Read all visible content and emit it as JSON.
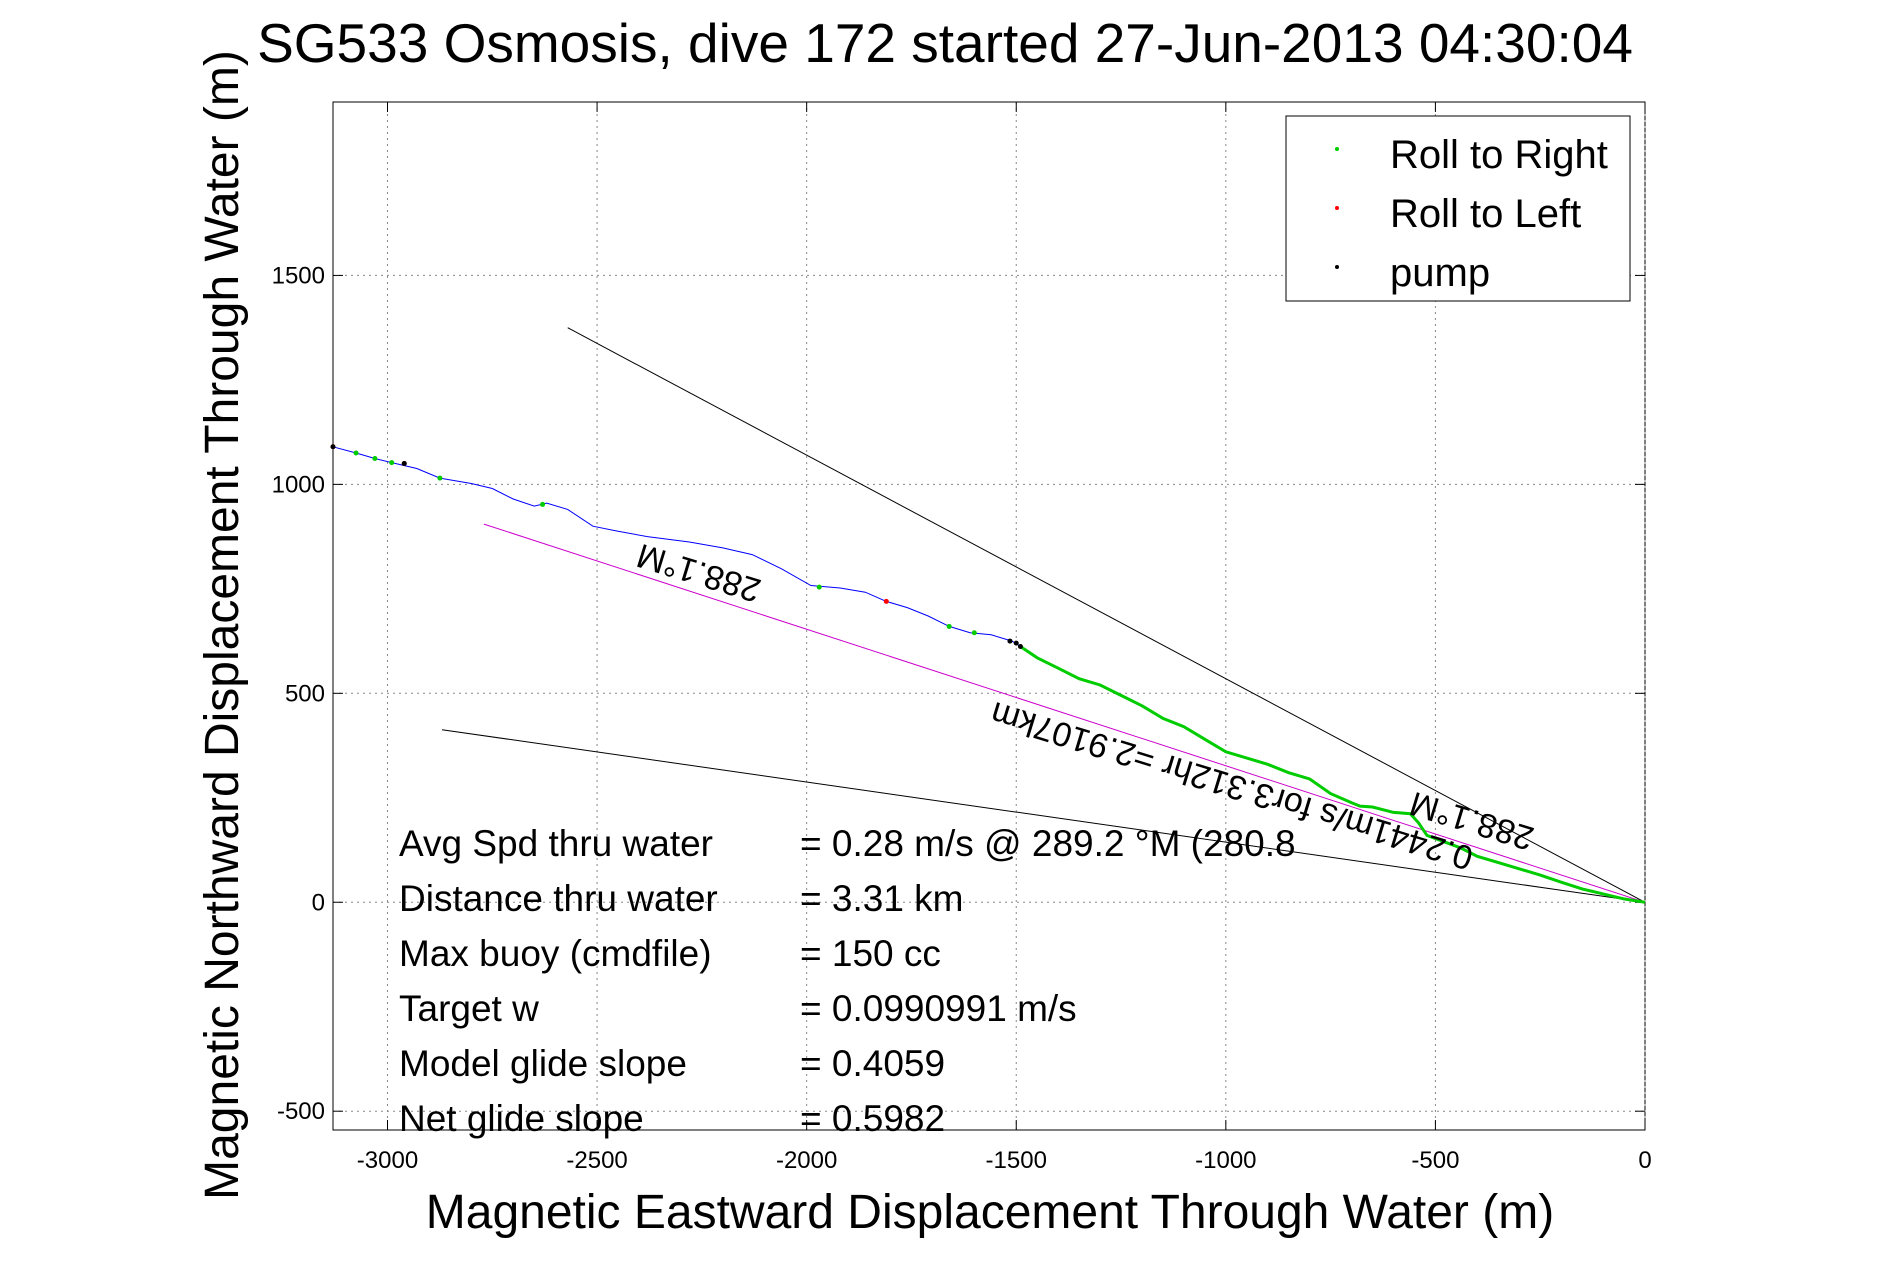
{
  "chart_data": {
    "type": "scatter",
    "title": "SG533 Osmosis, dive 172 started 27-Jun-2013 04:30:04",
    "xlabel": "Magnetic Eastward Displacement Through Water (m)",
    "ylabel": "Magnetic Northward Displacement Through Water (m)",
    "xlim": [
      -3130,
      0
    ],
    "ylim": [
      -545,
      1915
    ],
    "xticks": [
      -3000,
      -2500,
      -2000,
      -1500,
      -1000,
      -500,
      0
    ],
    "yticks": [
      -500,
      0,
      500,
      1000,
      1500
    ],
    "xtick_labels": [
      "-3000",
      "-2500",
      "-2000",
      "-1500",
      "-1000",
      "-500",
      "0"
    ],
    "ytick_labels": [
      "-500",
      "0",
      "500",
      "1000",
      "1500"
    ],
    "grid": true,
    "legend_position": "top-right",
    "legend": [
      {
        "label": "Roll to Right",
        "color": "#00cc00"
      },
      {
        "label": "Roll to Left",
        "color": "#ff0000"
      },
      {
        "label": "pump",
        "color": "#000000"
      }
    ],
    "track": {
      "color": "#0000ff",
      "x": [
        -3130,
        -3075,
        -3030,
        -2990,
        -2930,
        -2875,
        -2800,
        -2750,
        -2700,
        -2650,
        -2620,
        -2570,
        -2510,
        -2450,
        -2380,
        -2280,
        -2200,
        -2130,
        -2060,
        -1990,
        -1920,
        -1860,
        -1810,
        -1760,
        -1710,
        -1660,
        -1610,
        -1560,
        -1510,
        -1490
      ],
      "y": [
        1090,
        1075,
        1062,
        1052,
        1038,
        1015,
        1002,
        990,
        965,
        948,
        955,
        940,
        900,
        888,
        875,
        862,
        848,
        832,
        798,
        758,
        752,
        742,
        720,
        705,
        685,
        660,
        645,
        640,
        625,
        612
      ]
    },
    "roll_right_track": {
      "color": "#00cc00",
      "x": [
        -1490,
        -1450,
        -1400,
        -1350,
        -1300,
        -1250,
        -1200,
        -1150,
        -1100,
        -1050,
        -1000,
        -950,
        -900,
        -850,
        -800,
        -750,
        -700,
        -680,
        -650,
        -600,
        -560,
        -540,
        -520,
        -480,
        -440,
        -400,
        -350,
        -300,
        -250,
        -200,
        -150,
        -100,
        -50,
        0
      ],
      "y": [
        612,
        585,
        560,
        535,
        520,
        495,
        470,
        440,
        420,
        390,
        360,
        345,
        330,
        310,
        295,
        260,
        238,
        230,
        228,
        215,
        212,
        190,
        160,
        145,
        130,
        110,
        95,
        80,
        65,
        48,
        32,
        20,
        8,
        0
      ]
    },
    "markers_right": {
      "x": [
        -3075,
        -3030,
        -2990,
        -2875,
        -2630,
        -1970,
        -1660,
        -1600
      ],
      "y": [
        1075,
        1062,
        1052,
        1015,
        952,
        754,
        660,
        645
      ]
    },
    "markers_left": {
      "x": [
        -3130,
        -2960,
        -1810
      ],
      "y": [
        1090,
        1050,
        720
      ]
    },
    "markers_pump": {
      "x": [
        -3130,
        -2960,
        -1515,
        -1500,
        -1490
      ],
      "y": [
        1090,
        1050,
        625,
        620,
        612
      ]
    },
    "course_line": {
      "color": "#cc00cc",
      "x": [
        -2770,
        0
      ],
      "y": [
        905,
        0
      ]
    },
    "envelope_upper": {
      "x": [
        -2570,
        0
      ],
      "y": [
        1375,
        0
      ]
    },
    "envelope_lower": {
      "x": [
        -2870,
        0
      ],
      "y": [
        413,
        0
      ]
    },
    "annotations": [
      "288.1°M",
      "0.2441m/s for3.312hr =2.9107km",
      "288.1°M"
    ],
    "stats": [
      {
        "label": "Avg Spd thru water",
        "value": "=  0.28 m/s @ 289.2  °M (280.8"
      },
      {
        "label": "Distance thru water",
        "value": "=  3.31 km"
      },
      {
        "label": "Max buoy (cmdfile)",
        "value": "= 150 cc"
      },
      {
        "label": "Target w",
        "value": "= 0.0990991 m/s"
      },
      {
        "label": "Model glide slope",
        "value": "= 0.4059"
      },
      {
        "label": "Net glide slope",
        "value": "= 0.5982"
      }
    ]
  }
}
